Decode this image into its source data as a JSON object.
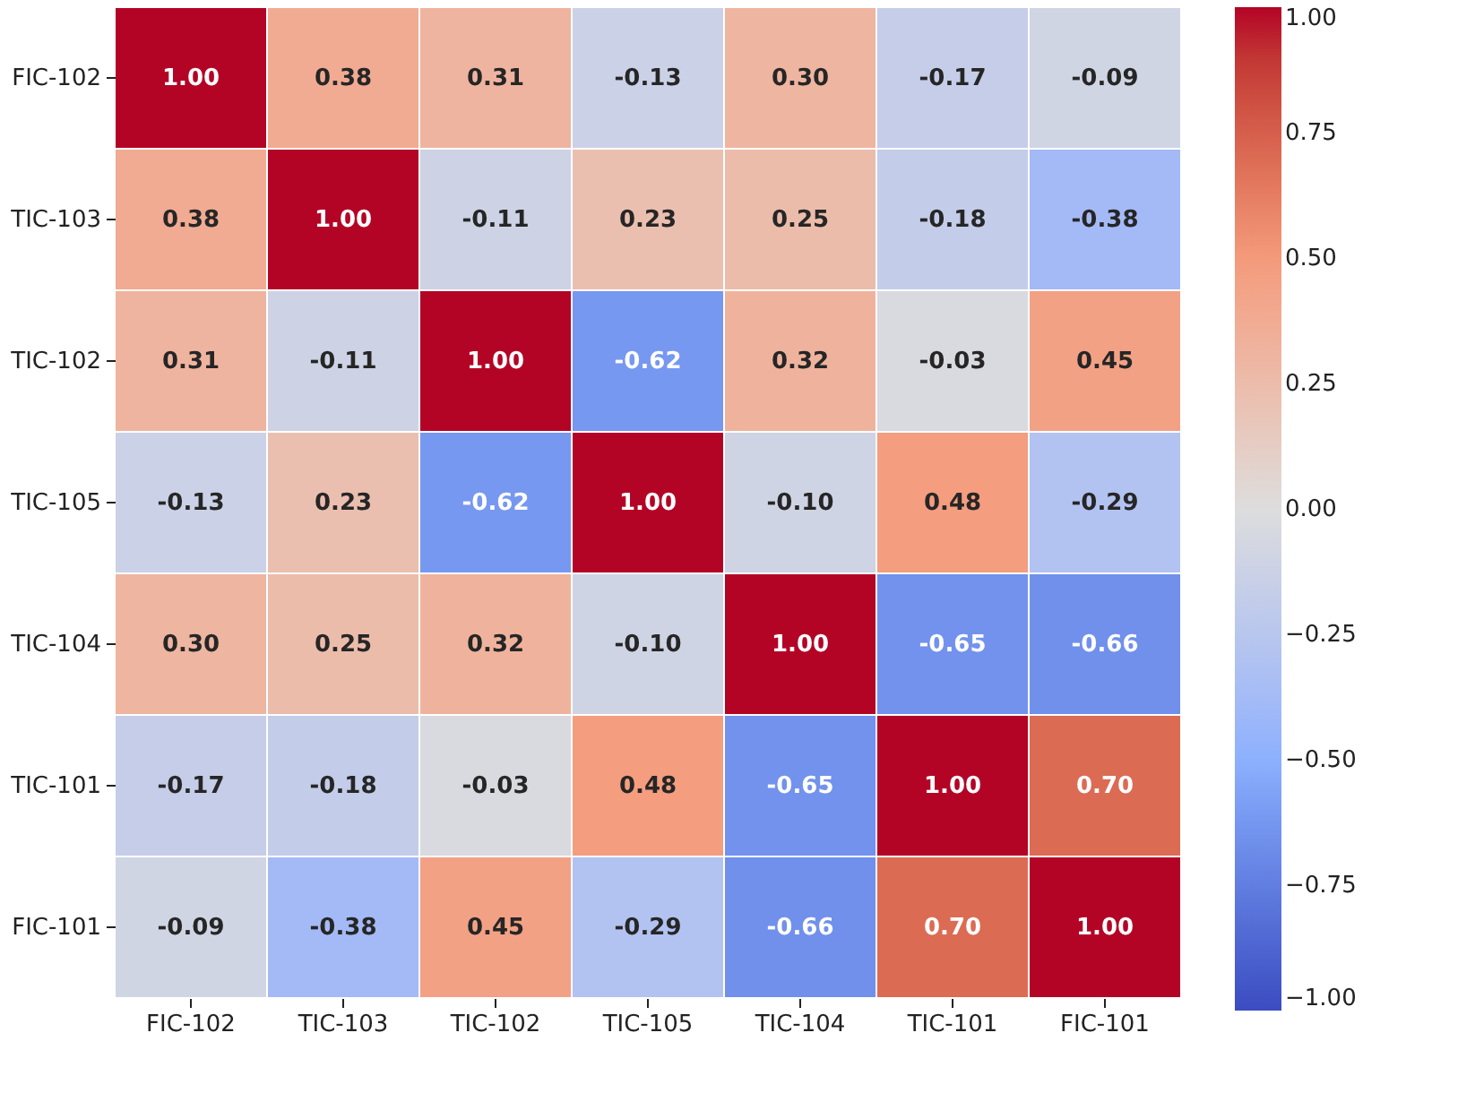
{
  "chart_data": {
    "type": "heatmap",
    "categories": [
      "FIC-102",
      "TIC-103",
      "TIC-102",
      "TIC-105",
      "TIC-104",
      "TIC-101",
      "FIC-101"
    ],
    "y_categories": [
      "FIC-102",
      "TIC-103",
      "TIC-102",
      "TIC-105",
      "TIC-104",
      "TIC-101",
      "FIC-101"
    ],
    "cells": [
      [
        1.0,
        0.38,
        0.31,
        -0.13,
        0.3,
        -0.17,
        -0.09
      ],
      [
        0.38,
        1.0,
        -0.11,
        0.23,
        0.25,
        -0.18,
        -0.38
      ],
      [
        0.31,
        -0.11,
        1.0,
        -0.62,
        0.32,
        -0.03,
        0.45
      ],
      [
        -0.13,
        0.23,
        -0.62,
        1.0,
        -0.1,
        0.48,
        -0.29
      ],
      [
        0.3,
        0.25,
        0.32,
        -0.1,
        1.0,
        -0.65,
        -0.66
      ],
      [
        -0.17,
        -0.18,
        -0.03,
        0.48,
        -0.65,
        1.0,
        0.7
      ],
      [
        -0.09,
        -0.38,
        0.45,
        -0.29,
        -0.66,
        0.7,
        1.0
      ]
    ],
    "cell_labels": [
      [
        "1.00",
        "0.38",
        "0.31",
        "-0.13",
        "0.30",
        "-0.17",
        "-0.09"
      ],
      [
        "0.38",
        "1.00",
        "-0.11",
        "0.23",
        "0.25",
        "-0.18",
        "-0.38"
      ],
      [
        "0.31",
        "-0.11",
        "1.00",
        "-0.62",
        "0.32",
        "-0.03",
        "0.45"
      ],
      [
        "-0.13",
        "0.23",
        "-0.62",
        "1.00",
        "-0.10",
        "0.48",
        "-0.29"
      ],
      [
        "0.30",
        "0.25",
        "0.32",
        "-0.10",
        "1.00",
        "-0.65",
        "-0.66"
      ],
      [
        "-0.17",
        "-0.18",
        "-0.03",
        "0.48",
        "-0.65",
        "1.00",
        "0.70"
      ],
      [
        "-0.09",
        "-0.38",
        "0.45",
        "-0.29",
        "-0.66",
        "0.70",
        "1.00"
      ]
    ],
    "clim": [
      -1,
      1
    ],
    "cticks": [
      {
        "value": 1,
        "label": "1.00"
      },
      {
        "value": 0.75,
        "label": "0.75"
      },
      {
        "value": 0.5,
        "label": "0.50"
      },
      {
        "value": 0.25,
        "label": "0.25"
      },
      {
        "value": 0,
        "label": "0.00"
      },
      {
        "value": -0.25,
        "label": "−0.25"
      },
      {
        "value": -0.5,
        "label": "−0.50"
      },
      {
        "value": -0.75,
        "label": "−0.75"
      },
      {
        "value": -1,
        "label": "−1.00"
      }
    ]
  }
}
